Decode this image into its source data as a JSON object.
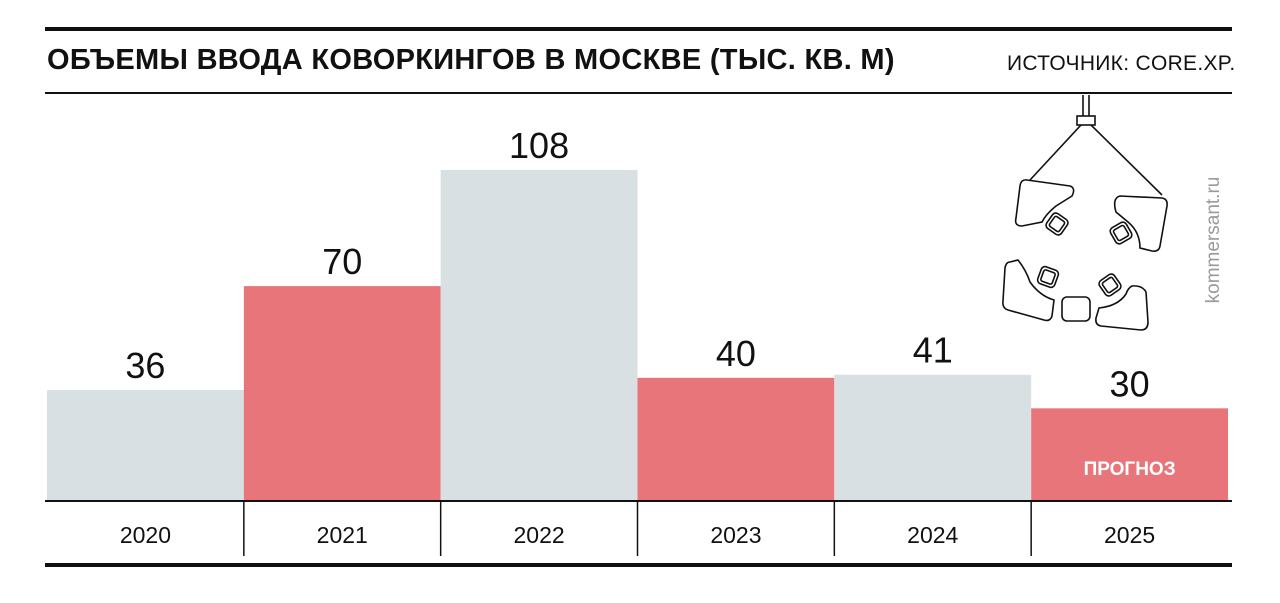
{
  "header": {
    "title": "ОБЪЕМЫ ВВОДА КОВОРКИНГОВ В МОСКВЕ (ТЫС. КВ. М)",
    "source": "ИСТОЧНИК: CORE.XP.",
    "watermark": "kommersant.ru"
  },
  "chart_data": {
    "type": "bar",
    "categories": [
      "2020",
      "2021",
      "2022",
      "2023",
      "2024",
      "2025"
    ],
    "values": [
      36,
      70,
      108,
      40,
      41,
      30
    ],
    "bar_colors": [
      "#d9e0e3",
      "#e8757a",
      "#d9e0e3",
      "#e8757a",
      "#d9e0e3",
      "#e8757a"
    ],
    "annotations": [
      {
        "category": "2025",
        "text": "ПРОГНОЗ"
      }
    ],
    "title": "ОБЪЕМЫ ВВОДА КОВОРКИНГОВ В МОСКВЕ (ТЫС. КВ. М)",
    "xlabel": "",
    "ylabel": "",
    "ylim": [
      0,
      108
    ],
    "grid": false,
    "legend": "none"
  },
  "icons": {
    "illustration": "coworking-desks-icon"
  }
}
